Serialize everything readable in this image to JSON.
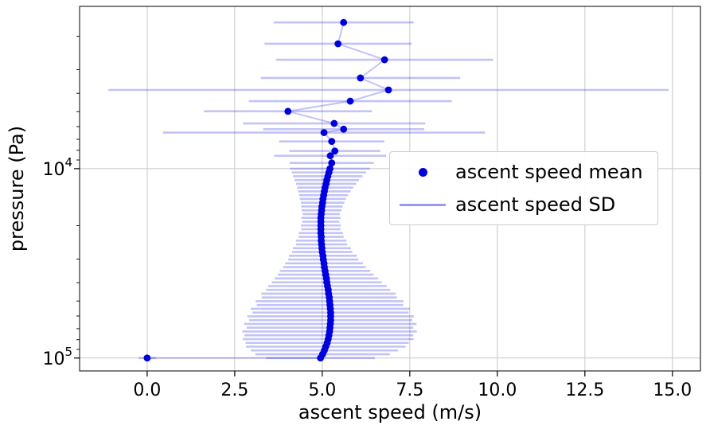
{
  "chart_data": {
    "type": "scatter",
    "title": "",
    "xlabel": "ascent speed (m/s)",
    "ylabel": "pressure (Pa)",
    "x_ticks": [
      0.0,
      2.5,
      5.0,
      7.5,
      10.0,
      12.5,
      15.0
    ],
    "x_tick_labels": [
      "0.0",
      "2.5",
      "5.0",
      "7.5",
      "10.0",
      "12.5",
      "15.0"
    ],
    "y_ticks": [
      10000,
      100000
    ],
    "y_tick_labels": [
      "10^4",
      "10^5"
    ],
    "xlim": [
      -1.93,
      15.8
    ],
    "ylim": [
      1390,
      117000
    ],
    "y_scale": "log-inverted",
    "grid": true,
    "colors": {
      "mean": "#0000dd",
      "sd": "rgba(55,55,230,0.30)",
      "sd_legend": "#9a9aec",
      "grid": "#c8c8c8"
    },
    "legend": {
      "position": "center right",
      "entries": [
        {
          "label": "ascent speed mean",
          "marker": "dot"
        },
        {
          "label": "ascent speed SD",
          "marker": "line"
        }
      ]
    },
    "series": [
      {
        "name": "ascent speed mean",
        "type": "scatter"
      },
      {
        "name": "ascent speed SD",
        "type": "errorbar-x"
      }
    ],
    "points_format": [
      "pressure_pa",
      "mean_m_s",
      "sd_m_s"
    ],
    "points": [
      [
        100000,
        0.0,
        0.25
      ],
      [
        100000,
        4.95,
        1.55
      ],
      [
        95499,
        5.01,
        1.92
      ],
      [
        91201,
        5.06,
        2.1
      ],
      [
        87096,
        5.1,
        2.28
      ],
      [
        83176,
        5.14,
        2.33
      ],
      [
        79433,
        5.17,
        2.44
      ],
      [
        75858,
        5.19,
        2.41
      ],
      [
        72444,
        5.21,
        2.49
      ],
      [
        69183,
        5.22,
        2.38
      ],
      [
        66069,
        5.23,
        2.46
      ],
      [
        63096,
        5.24,
        2.33
      ],
      [
        60256,
        5.24,
        2.38
      ],
      [
        57544,
        5.24,
        2.23
      ],
      [
        54954,
        5.23,
        2.27
      ],
      [
        52481,
        5.22,
        2.09
      ],
      [
        50119,
        5.21,
        2.11
      ],
      [
        47863,
        5.2,
        1.93
      ],
      [
        45709,
        5.18,
        1.92
      ],
      [
        43652,
        5.17,
        1.77
      ],
      [
        41687,
        5.15,
        1.69
      ],
      [
        39811,
        5.13,
        1.57
      ],
      [
        38019,
        5.12,
        1.48
      ],
      [
        36308,
        5.1,
        1.37
      ],
      [
        34674,
        5.08,
        1.29
      ],
      [
        33113,
        5.06,
        1.18
      ],
      [
        31623,
        5.05,
        1.11
      ],
      [
        30200,
        5.03,
        1.0
      ],
      [
        28840,
        5.02,
        0.97
      ],
      [
        27542,
        5.0,
        0.86
      ],
      [
        26303,
        4.99,
        0.83
      ],
      [
        25119,
        4.98,
        0.73
      ],
      [
        23988,
        4.97,
        0.72
      ],
      [
        22909,
        4.97,
        0.64
      ],
      [
        21878,
        4.96,
        0.63
      ],
      [
        20893,
        4.96,
        0.56
      ],
      [
        19953,
        4.96,
        0.57
      ],
      [
        19055,
        4.96,
        0.53
      ],
      [
        18197,
        4.96,
        0.56
      ],
      [
        17378,
        4.97,
        0.53
      ],
      [
        16596,
        4.98,
        0.57
      ],
      [
        15849,
        4.99,
        0.59
      ],
      [
        15136,
        5.01,
        0.62
      ],
      [
        14454,
        5.02,
        0.66
      ],
      [
        13804,
        5.04,
        0.7
      ],
      [
        13183,
        5.06,
        0.75
      ],
      [
        12589,
        5.08,
        0.8
      ],
      [
        12023,
        5.11,
        0.86
      ],
      [
        11482,
        5.13,
        0.92
      ],
      [
        10965,
        5.16,
        0.99
      ],
      [
        10471,
        5.19,
        1.06
      ],
      [
        10000,
        5.22,
        1.14
      ],
      [
        9330,
        5.27,
        1.2
      ],
      [
        8550,
        5.23,
        1.6
      ],
      [
        8070,
        5.36,
        1.3
      ],
      [
        7180,
        5.27,
        1.5
      ],
      [
        6450,
        5.05,
        4.6
      ],
      [
        6190,
        5.61,
        2.3
      ],
      [
        5770,
        5.34,
        2.6
      ],
      [
        4980,
        4.02,
        2.4
      ],
      [
        4400,
        5.8,
        2.9
      ],
      [
        3840,
        6.89,
        8.0
      ],
      [
        3320,
        6.09,
        2.85
      ],
      [
        2660,
        6.78,
        3.1
      ],
      [
        2190,
        5.45,
        2.1
      ],
      [
        1690,
        5.61,
        2.0
      ]
    ]
  }
}
